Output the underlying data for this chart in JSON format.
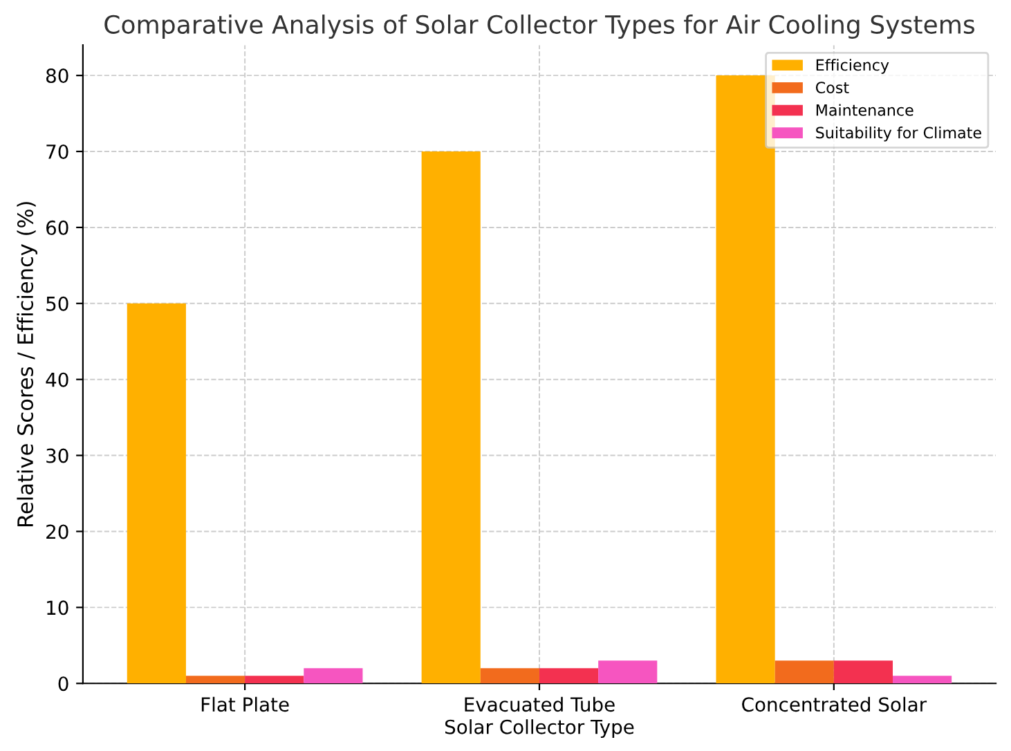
{
  "chart_data": {
    "type": "bar",
    "title": "Comparative Analysis of Solar Collector Types for Air Cooling Systems",
    "xlabel": "Solar Collector Type",
    "ylabel": "Relative Scores / Efficiency (%)",
    "categories": [
      "Flat Plate",
      "Evacuated Tube",
      "Concentrated Solar"
    ],
    "series": [
      {
        "name": "Efficiency",
        "color": "#ffb000",
        "values": [
          50,
          70,
          80
        ]
      },
      {
        "name": "Cost",
        "color": "#f26b1d",
        "values": [
          1,
          2,
          3
        ]
      },
      {
        "name": "Maintenance",
        "color": "#f33150",
        "values": [
          1,
          2,
          3
        ]
      },
      {
        "name": "Suitability for Climate",
        "color": "#f655c0",
        "values": [
          2,
          3,
          1
        ]
      }
    ],
    "ylim": [
      0,
      84
    ],
    "yticks": [
      0,
      10,
      20,
      30,
      40,
      50,
      60,
      70,
      80
    ],
    "grid": true,
    "legend": "top right",
    "line_style": "dashed"
  }
}
